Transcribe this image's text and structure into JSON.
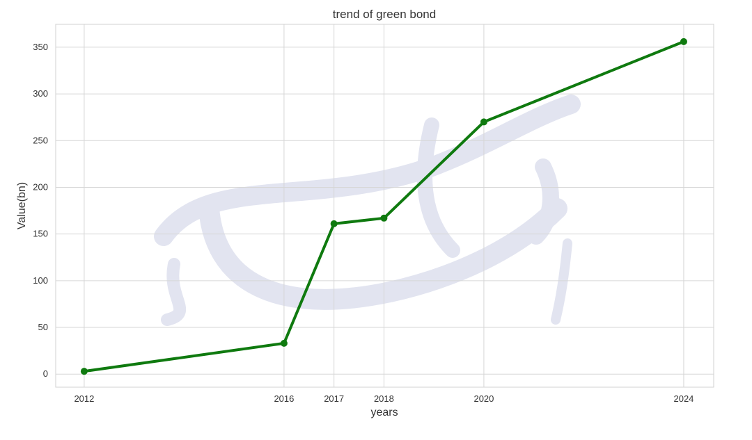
{
  "chart_data": {
    "type": "line",
    "title": "trend of green bond",
    "xlabel": "years",
    "ylabel": "Value(bn)",
    "x": [
      2012,
      2016,
      2017,
      2018,
      2020,
      2024
    ],
    "series": [
      {
        "values": [
          3,
          33,
          161,
          167,
          270,
          356
        ],
        "color": "#0f7a0f"
      }
    ],
    "x_ticks": [
      2012,
      2016,
      2017,
      2018,
      2020,
      2024
    ],
    "y_ticks": [
      0,
      50,
      100,
      150,
      200,
      250,
      300,
      350
    ],
    "xlim": [
      2011.43,
      2024.6
    ],
    "ylim": [
      -14,
      374.5
    ],
    "grid": true,
    "markers": true,
    "legend": "none"
  }
}
